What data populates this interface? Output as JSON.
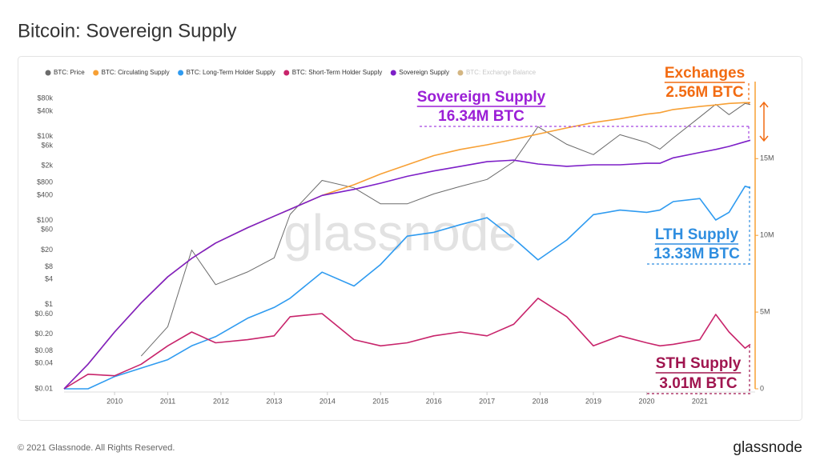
{
  "page_title": "Bitcoin: Sovereign Supply",
  "footer": {
    "copyright": "© 2021 Glassnode. All Rights Reserved.",
    "logo": "glassnode"
  },
  "chart_data": {
    "type": "line",
    "watermark": "glassnode",
    "x": [
      2009.05,
      2009.5,
      2010.0,
      2010.5,
      2011.0,
      2011.45,
      2011.9,
      2012.5,
      2013.0,
      2013.3,
      2013.9,
      2014.5,
      2015.0,
      2015.5,
      2016.0,
      2016.5,
      2017.0,
      2017.5,
      2017.96,
      2018.5,
      2019.0,
      2019.5,
      2020.0,
      2020.25,
      2020.5,
      2021.0,
      2021.3,
      2021.55,
      2021.85,
      2021.95
    ],
    "xlim": [
      2009.05,
      2021.95
    ],
    "xticks": [
      2010,
      2011,
      2012,
      2013,
      2014,
      2015,
      2016,
      2017,
      2018,
      2019,
      2020,
      2021
    ],
    "ylog": true,
    "ylim": [
      0.01,
      130000
    ],
    "yticks": [
      {
        "value": 0.01,
        "label": "$0.01"
      },
      {
        "value": 0.04,
        "label": "$0.04"
      },
      {
        "value": 0.08,
        "label": "$0.08"
      },
      {
        "value": 0.2,
        "label": "$0.20"
      },
      {
        "value": 0.6,
        "label": "$0.60"
      },
      {
        "value": 1,
        "label": "$1"
      },
      {
        "value": 4,
        "label": "$4"
      },
      {
        "value": 8,
        "label": "$8"
      },
      {
        "value": 20,
        "label": "$20"
      },
      {
        "value": 60,
        "label": "$60"
      },
      {
        "value": 100,
        "label": "$100"
      },
      {
        "value": 400,
        "label": "$400"
      },
      {
        "value": 800,
        "label": "$800"
      },
      {
        "value": 2000,
        "label": "$2k"
      },
      {
        "value": 6000,
        "label": "$6k"
      },
      {
        "value": 10000,
        "label": "$10k"
      },
      {
        "value": 40000,
        "label": "$40k"
      },
      {
        "value": 80000,
        "label": "$80k"
      }
    ],
    "y2lim": [
      0,
      19500000
    ],
    "y2ticks": [
      {
        "value": 0,
        "label": "0"
      },
      {
        "value": 5000000,
        "label": "5M"
      },
      {
        "value": 10000000,
        "label": "10M"
      },
      {
        "value": 15000000,
        "label": "15M"
      }
    ],
    "grid": false,
    "series": [
      {
        "name": "BTC: Price",
        "color": "#6b6b6b",
        "values": [
          null,
          null,
          null,
          0.06,
          0.3,
          20,
          3,
          6,
          13,
          140,
          900,
          600,
          250,
          250,
          430,
          650,
          950,
          2500,
          17000,
          6500,
          3700,
          11000,
          7200,
          5000,
          9200,
          29000,
          58000,
          33000,
          61000,
          57000
        ]
      },
      {
        "name": "BTC: Circulating Supply",
        "color": "#f7a035",
        "axis": "y2",
        "values": [
          0,
          1600000,
          3700000,
          5600000,
          7300000,
          8500000,
          9500000,
          10500000,
          11250000,
          11700000,
          12600000,
          13300000,
          14000000,
          14600000,
          15200000,
          15600000,
          15900000,
          16250000,
          16600000,
          17000000,
          17350000,
          17600000,
          17900000,
          18000000,
          18200000,
          18400000,
          18500000,
          18600000,
          18650000,
          18650000
        ]
      },
      {
        "name": "BTC: Long-Term Holder Supply",
        "color": "#2f9bf0",
        "axis": "y2",
        "values": [
          0,
          0,
          800000,
          1350000,
          1900000,
          2800000,
          3400000,
          4600000,
          5300000,
          5900000,
          7600000,
          6700000,
          8100000,
          9950000,
          10200000,
          10700000,
          11150000,
          9800000,
          8400000,
          9700000,
          11350000,
          11650000,
          11500000,
          11650000,
          12200000,
          12400000,
          11000000,
          11500000,
          13200000,
          13100000
        ]
      },
      {
        "name": "BTC: Short-Term Holder Supply",
        "color": "#c8246b",
        "axis": "y2",
        "values": [
          0,
          950000,
          850000,
          1600000,
          2800000,
          3700000,
          3000000,
          3200000,
          3450000,
          4700000,
          4900000,
          3200000,
          2800000,
          3000000,
          3450000,
          3700000,
          3450000,
          4200000,
          5900000,
          4700000,
          2800000,
          3450000,
          3000000,
          2800000,
          2900000,
          3200000,
          4850000,
          3700000,
          2650000,
          2900000
        ]
      },
      {
        "name": "Sovereign Supply",
        "color": "#7d1fc7",
        "axis": "y2",
        "values": [
          0,
          1600000,
          3700000,
          5600000,
          7300000,
          8500000,
          9500000,
          10500000,
          11250000,
          11700000,
          12600000,
          13000000,
          13400000,
          13850000,
          14200000,
          14500000,
          14800000,
          14900000,
          14650000,
          14500000,
          14600000,
          14600000,
          14700000,
          14700000,
          15050000,
          15400000,
          15600000,
          15800000,
          16100000,
          16200000
        ]
      }
    ],
    "inactive_legend": {
      "name": "BTC: Exchange Balance",
      "color": "#b8862e"
    },
    "annotations": [
      {
        "title": "Exchanges",
        "text": "2.56M BTC",
        "color": "#f26b12"
      },
      {
        "title": "Sovereign Supply",
        "text": "16.34M BTC",
        "color": "#9b1fd6"
      },
      {
        "title": "LTH Supply",
        "text": "13.33M BTC",
        "color": "#2f8ee0"
      },
      {
        "title": "STH Supply",
        "text": "3.01M BTC",
        "color": "#a0154f"
      }
    ]
  }
}
